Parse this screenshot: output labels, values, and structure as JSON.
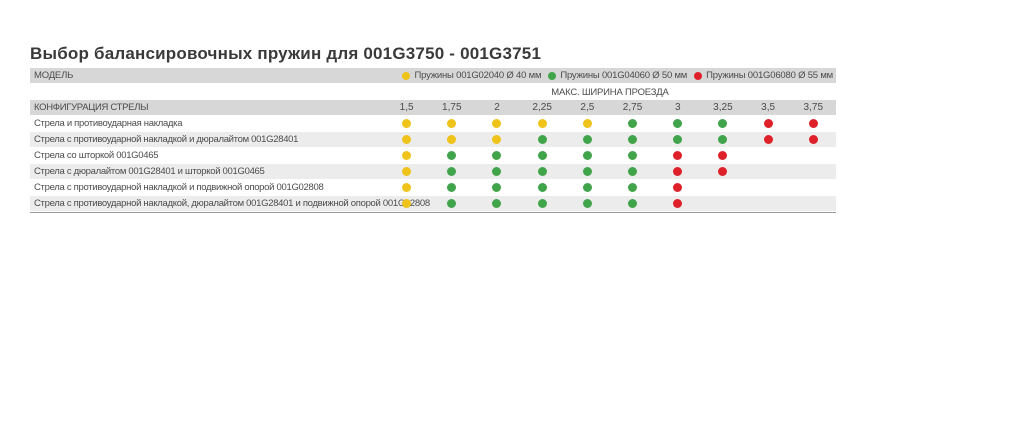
{
  "title": "Выбор балансировочных пружин для 001G3750 - 001G3751",
  "colors": {
    "yellow": "#efc319",
    "green": "#3fa44a",
    "red": "#de2129",
    "header_bg": "#d7d7d7",
    "stripe_bg": "#ececec"
  },
  "table": {
    "model_header": "МОДЕЛЬ",
    "legend": [
      {
        "color": "yellow",
        "label": "Пружины 001G02040 Ø 40 мм"
      },
      {
        "color": "green",
        "label": "Пружины 001G04060 Ø 50 мм"
      },
      {
        "color": "red",
        "label": "Пружины 001G06080 Ø 55 мм"
      }
    ],
    "width_header": "МАКС. ШИРИНА ПРОЕЗДА",
    "config_header": "КОНФИГУРАЦИЯ СТРЕЛЫ",
    "columns": [
      "1,5",
      "1,75",
      "2",
      "2,25",
      "2,5",
      "2,75",
      "3",
      "3,25",
      "3,5",
      "3,75"
    ],
    "rows": [
      {
        "label": "Стрела и противоударная накладка",
        "cells": [
          "yellow",
          "yellow",
          "yellow",
          "yellow",
          "yellow",
          "green",
          "green",
          "green",
          "red",
          "red"
        ]
      },
      {
        "label": "Стрела с противоударной накладкой и дюралайтом 001G28401",
        "cells": [
          "yellow",
          "yellow",
          "yellow",
          "green",
          "green",
          "green",
          "green",
          "green",
          "red",
          "red"
        ]
      },
      {
        "label": "Стрела со шторкой 001G0465",
        "cells": [
          "yellow",
          "green",
          "green",
          "green",
          "green",
          "green",
          "red",
          "red",
          "",
          ""
        ]
      },
      {
        "label": "Стрела с дюралайтом 001G28401 и шторкой 001G0465",
        "cells": [
          "yellow",
          "green",
          "green",
          "green",
          "green",
          "green",
          "red",
          "red",
          "",
          ""
        ]
      },
      {
        "label": "Стрела с противоударной накладкой и подвижной опорой 001G02808",
        "cells": [
          "yellow",
          "green",
          "green",
          "green",
          "green",
          "green",
          "red",
          "",
          "",
          ""
        ]
      },
      {
        "label": "Стрела с противоударной накладкой, дюралайтом 001G28401 и подвижной опорой 001G02808",
        "cells": [
          "yellow",
          "green",
          "green",
          "green",
          "green",
          "green",
          "red",
          "",
          "",
          ""
        ]
      }
    ]
  }
}
